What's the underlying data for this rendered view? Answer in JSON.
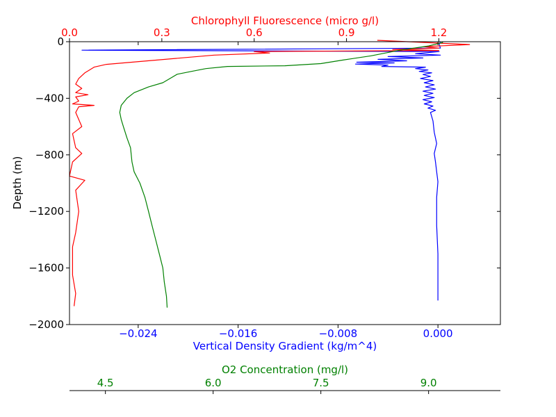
{
  "chart_data": {
    "type": "line",
    "ylabel": "Depth (m)",
    "ylim": [
      -2000,
      0
    ],
    "yticks": [
      "0",
      "−400",
      "−800",
      "−1200",
      "−1600",
      "−2000"
    ],
    "ytick_values": [
      0,
      -400,
      -800,
      -1200,
      -1600,
      -2000
    ],
    "axes": [
      {
        "id": "density",
        "position": "bottom",
        "label": "Vertical Density Gradient (kg/m^4)",
        "color": "#0000ff",
        "xlim": [
          -0.0295,
          0.005
        ],
        "ticks": [
          "−0.024",
          "−0.016",
          "−0.008",
          "0.000"
        ],
        "tick_values": [
          -0.024,
          -0.016,
          -0.008,
          0.0
        ]
      },
      {
        "id": "chlorophyll",
        "position": "top",
        "label": "Chlorophyll Fluorescence (micro g/l)",
        "color": "#ff0000",
        "xlim": [
          0.0,
          1.4
        ],
        "ticks": [
          "0.0",
          "0.3",
          "0.6",
          "0.9",
          "1.2"
        ],
        "tick_values": [
          0.0,
          0.3,
          0.6,
          0.9,
          1.2
        ]
      },
      {
        "id": "oxygen",
        "position": "bottom-offset",
        "label": "O2 Concentration (mg/l)",
        "color": "#008000",
        "xlim": [
          4.0,
          10.0
        ],
        "ticks": [
          "4.5",
          "6.0",
          "7.5",
          "9.0"
        ],
        "tick_values": [
          4.5,
          6.0,
          7.5,
          9.0
        ]
      }
    ],
    "series": [
      {
        "axis": "density",
        "color": "#0000ff",
        "points": [
          [
            0.0002,
            0
          ],
          [
            0.0001,
            -20
          ],
          [
            0.0002,
            -45
          ],
          [
            -0.0285,
            -60
          ],
          [
            0.0001,
            -70
          ],
          [
            -0.0018,
            -85
          ],
          [
            0.0002,
            -95
          ],
          [
            -0.004,
            -105
          ],
          [
            -0.0012,
            -115
          ],
          [
            -0.0048,
            -125
          ],
          [
            -0.0025,
            -135
          ],
          [
            -0.0065,
            -145
          ],
          [
            -0.0035,
            -150
          ],
          [
            -0.0066,
            -158
          ],
          [
            -0.004,
            -165
          ],
          [
            -0.0045,
            -175
          ],
          [
            -0.001,
            -180
          ],
          [
            -0.0018,
            -190
          ],
          [
            -0.0008,
            -200
          ],
          [
            -0.0015,
            -210
          ],
          [
            -0.0005,
            -220
          ],
          [
            -0.0012,
            -232
          ],
          [
            -0.0006,
            -245
          ],
          [
            -0.0014,
            -260
          ],
          [
            -0.0004,
            -275
          ],
          [
            -0.0011,
            -290
          ],
          [
            -0.0003,
            -305
          ],
          [
            -0.001,
            -320
          ],
          [
            -0.0002,
            -335
          ],
          [
            -0.0012,
            -350
          ],
          [
            -0.0004,
            -365
          ],
          [
            -0.0011,
            -380
          ],
          [
            -0.0003,
            -395
          ],
          [
            -0.0012,
            -410
          ],
          [
            -0.0005,
            -425
          ],
          [
            -0.0011,
            -440
          ],
          [
            -0.0004,
            -455
          ],
          [
            -0.0008,
            -470
          ],
          [
            -0.0002,
            -485
          ],
          [
            -0.0006,
            -500
          ],
          [
            -0.0004,
            -560
          ],
          [
            -0.0003,
            -640
          ],
          [
            -0.0001,
            -720
          ],
          [
            -0.0003,
            -790
          ],
          [
            -0.0002,
            -850
          ],
          [
            -0.0001,
            -920
          ],
          [
            0.0,
            -990
          ],
          [
            -0.0001,
            -1100
          ],
          [
            -0.0001,
            -1300
          ],
          [
            0.0,
            -1500
          ],
          [
            0.0,
            -1700
          ],
          [
            0.0,
            -1830
          ]
        ]
      },
      {
        "axis": "chlorophyll",
        "color": "#ff0000",
        "points": [
          [
            1.0,
            10
          ],
          [
            1.3,
            -20
          ],
          [
            1.15,
            -35
          ],
          [
            1.2,
            -45
          ],
          [
            1.05,
            -55
          ],
          [
            1.2,
            -62
          ],
          [
            0.6,
            -70
          ],
          [
            0.65,
            -80
          ],
          [
            0.47,
            -95
          ],
          [
            0.12,
            -160
          ],
          [
            0.08,
            -180
          ],
          [
            0.05,
            -220
          ],
          [
            0.03,
            -260
          ],
          [
            0.02,
            -300
          ],
          [
            0.04,
            -330
          ],
          [
            0.02,
            -360
          ],
          [
            0.06,
            -375
          ],
          [
            0.02,
            -390
          ],
          [
            0.03,
            -420
          ],
          [
            0.01,
            -440
          ],
          [
            0.08,
            -450
          ],
          [
            0.03,
            -460
          ],
          [
            0.02,
            -500
          ],
          [
            0.04,
            -600
          ],
          [
            0.01,
            -650
          ],
          [
            0.02,
            -750
          ],
          [
            0.04,
            -790
          ],
          [
            0.01,
            -850
          ],
          [
            0.0,
            -950
          ],
          [
            0.05,
            -980
          ],
          [
            0.02,
            -1050
          ],
          [
            0.03,
            -1200
          ],
          [
            0.02,
            -1350
          ],
          [
            0.01,
            -1450
          ],
          [
            0.01,
            -1650
          ],
          [
            0.02,
            -1780
          ],
          [
            0.015,
            -1870
          ]
        ]
      },
      {
        "axis": "oxygen",
        "color": "#008000",
        "points": [
          [
            9.2,
            -5
          ],
          [
            9.0,
            -30
          ],
          [
            8.6,
            -60
          ],
          [
            8.2,
            -100
          ],
          [
            7.8,
            -130
          ],
          [
            7.5,
            -155
          ],
          [
            7.0,
            -170
          ],
          [
            6.2,
            -175
          ],
          [
            5.9,
            -190
          ],
          [
            5.7,
            -210
          ],
          [
            5.5,
            -230
          ],
          [
            5.4,
            -260
          ],
          [
            5.3,
            -290
          ],
          [
            5.1,
            -320
          ],
          [
            4.9,
            -360
          ],
          [
            4.8,
            -400
          ],
          [
            4.72,
            -450
          ],
          [
            4.7,
            -500
          ],
          [
            4.72,
            -550
          ],
          [
            4.75,
            -600
          ],
          [
            4.8,
            -680
          ],
          [
            4.85,
            -750
          ],
          [
            4.87,
            -850
          ],
          [
            4.9,
            -920
          ],
          [
            4.98,
            -1000
          ],
          [
            5.05,
            -1100
          ],
          [
            5.1,
            -1200
          ],
          [
            5.15,
            -1300
          ],
          [
            5.2,
            -1400
          ],
          [
            5.25,
            -1500
          ],
          [
            5.3,
            -1600
          ],
          [
            5.32,
            -1700
          ],
          [
            5.35,
            -1800
          ],
          [
            5.36,
            -1880
          ]
        ]
      }
    ]
  }
}
